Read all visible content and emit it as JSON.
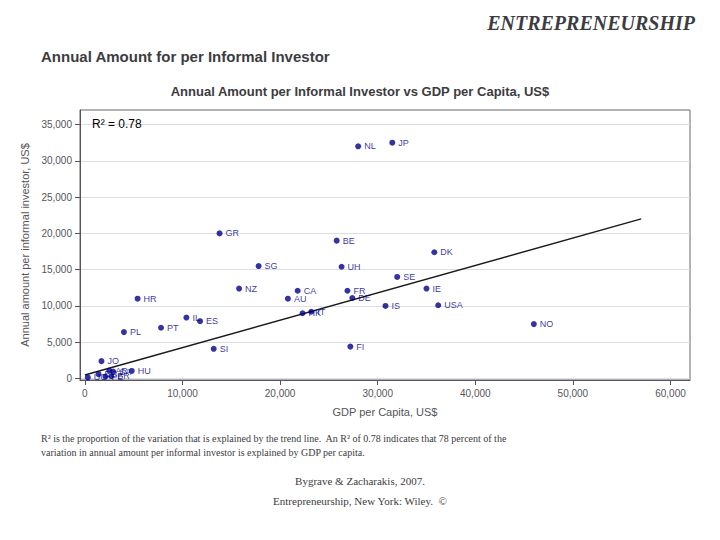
{
  "chart_data": {
    "type": "scatter",
    "supertitle": "ENTREPRENEURSHIP",
    "subtitle": "Annual Amount for per Informal Investor",
    "title": "Annual Amount per Informal Investor vs GDP per Capita, US$",
    "xlabel": "GDP per Capita, US$",
    "ylabel": "Annual amount per informal investor, US$",
    "annotations": [
      "R² = 0.78"
    ],
    "footnote": "R² is the proportion of the variation that is explained by the trend line.  An R² of 0.78 indicates that 78 percent of the\nvariation in annual amount per informal investor is explained by GDP per capita.",
    "citations": [
      "Bygrave & Zacharakis, 2007.",
      "Entrepreneurship, New York: Wiley.  ©"
    ],
    "series": [
      {
        "type": "scatter",
        "color": "#00008b",
        "labels": [
          "UG",
          "PE",
          "BR",
          "EC",
          "AR",
          "JO",
          "SA",
          "HU",
          "PL",
          "HR",
          "PT",
          "IL",
          "ES",
          "SI",
          "NZ",
          "GR",
          "SG",
          "AU",
          "CA",
          "HK",
          "IT",
          "FI",
          "BE",
          "UH",
          "FR",
          "DE",
          "IS",
          "SE",
          "IE",
          "USA",
          "DK",
          "NL",
          "JP",
          "NO"
        ],
        "x": [
          300,
          2100,
          2700,
          1400,
          2500,
          1700,
          2900,
          4800,
          4000,
          5400,
          7800,
          10400,
          11800,
          13200,
          15800,
          13800,
          17800,
          20800,
          21800,
          22300,
          23200,
          27200,
          25800,
          26300,
          26900,
          27400,
          30800,
          32000,
          35000,
          36200,
          35800,
          28000,
          31500,
          46000
        ],
        "values": [
          150,
          280,
          320,
          600,
          1100,
          2400,
          950,
          1050,
          6400,
          11000,
          7000,
          8400,
          7900,
          4100,
          12400,
          20000,
          15500,
          11000,
          12100,
          9000,
          9200,
          4400,
          19000,
          15400,
          12100,
          11100,
          10000,
          14000,
          12400,
          10100,
          17400,
          32000,
          32500,
          7500
        ]
      },
      {
        "type": "line",
        "color": "#1a1a1a",
        "x": [
          0,
          57000
        ],
        "values": [
          500,
          22000
        ]
      }
    ],
    "xlim": [
      -500,
      62000
    ],
    "ylim": [
      -200,
      37000
    ],
    "xticks": [
      0,
      {
        "value": 10000,
        "label": "10,000"
      },
      {
        "value": 20000,
        "label": "20,000"
      },
      {
        "value": 30000,
        "label": "30,000"
      },
      {
        "value": 40000,
        "label": "40,000"
      },
      {
        "value": 50000,
        "label": "50,000"
      },
      {
        "value": 60000,
        "label": "60,000"
      }
    ],
    "yticks": [
      0,
      {
        "value": 5000,
        "label": "5,000"
      },
      {
        "value": 10000,
        "label": "10,000"
      },
      {
        "value": 15000,
        "label": "15,000"
      },
      {
        "value": 20000,
        "label": "20,000"
      },
      {
        "value": 25000,
        "label": "25,000"
      },
      {
        "value": 30000,
        "label": "30,000"
      },
      {
        "value": 35000,
        "label": "35,000"
      }
    ],
    "grid": "y"
  }
}
